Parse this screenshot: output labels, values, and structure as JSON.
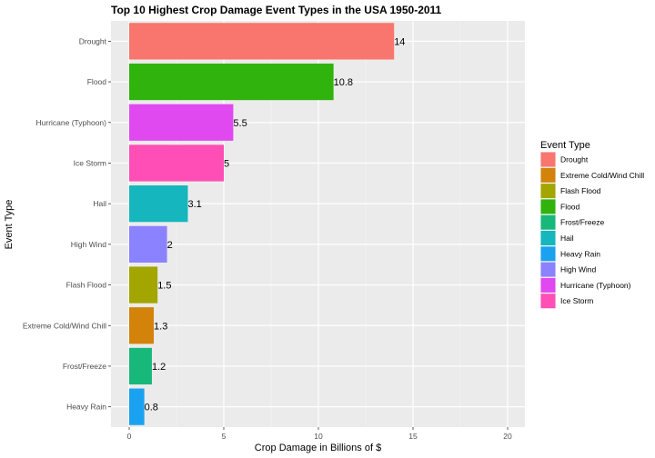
{
  "chart_data": {
    "type": "bar",
    "orientation": "horizontal",
    "title": "Top 10 Highest Crop Damage Event Types in the USA 1950-2011",
    "xlabel": "Crop Damage in Billions of $",
    "ylabel": "Event Type",
    "xlim": [
      0,
      20.5
    ],
    "xticks": [
      0,
      5,
      10,
      15,
      20
    ],
    "xtick_labels": [
      "0",
      "5",
      "10",
      "15",
      "20"
    ],
    "grid": true,
    "categories": [
      "Drought",
      "Flood",
      "Hurricane (Typhoon)",
      "Ice Storm",
      "Hail",
      "High Wind",
      "Flash Flood",
      "Extreme Cold/Wind Chill",
      "Frost/Freeze",
      "Heavy Rain"
    ],
    "values": [
      14,
      10.8,
      5.5,
      5,
      3.1,
      2,
      1.5,
      1.3,
      1.2,
      0.8
    ],
    "value_labels": [
      "14",
      "10.8",
      "5.5",
      "5",
      "3.1",
      "2",
      "1.5",
      "1.3",
      "1.2",
      "0.8"
    ],
    "colors": [
      "#F8766D",
      "#31B30D",
      "#E048F0",
      "#FF4EB5",
      "#15B6BD",
      "#8B82FF",
      "#A3A500",
      "#D3820A",
      "#17B87A",
      "#1AA2F0"
    ],
    "legend": {
      "title": "Event Type",
      "position": "right",
      "items": [
        {
          "label": "Drought",
          "color": "#F8766D"
        },
        {
          "label": "Extreme Cold/Wind Chill",
          "color": "#D3820A"
        },
        {
          "label": "Flash Flood",
          "color": "#A3A500"
        },
        {
          "label": "Flood",
          "color": "#31B30D"
        },
        {
          "label": "Frost/Freeze",
          "color": "#17B87A"
        },
        {
          "label": "Hail",
          "color": "#15B6BD"
        },
        {
          "label": "Heavy Rain",
          "color": "#1AA2F0"
        },
        {
          "label": "High Wind",
          "color": "#8B82FF"
        },
        {
          "label": "Hurricane (Typhoon)",
          "color": "#E048F0"
        },
        {
          "label": "Ice Storm",
          "color": "#FF4EB5"
        }
      ]
    }
  }
}
